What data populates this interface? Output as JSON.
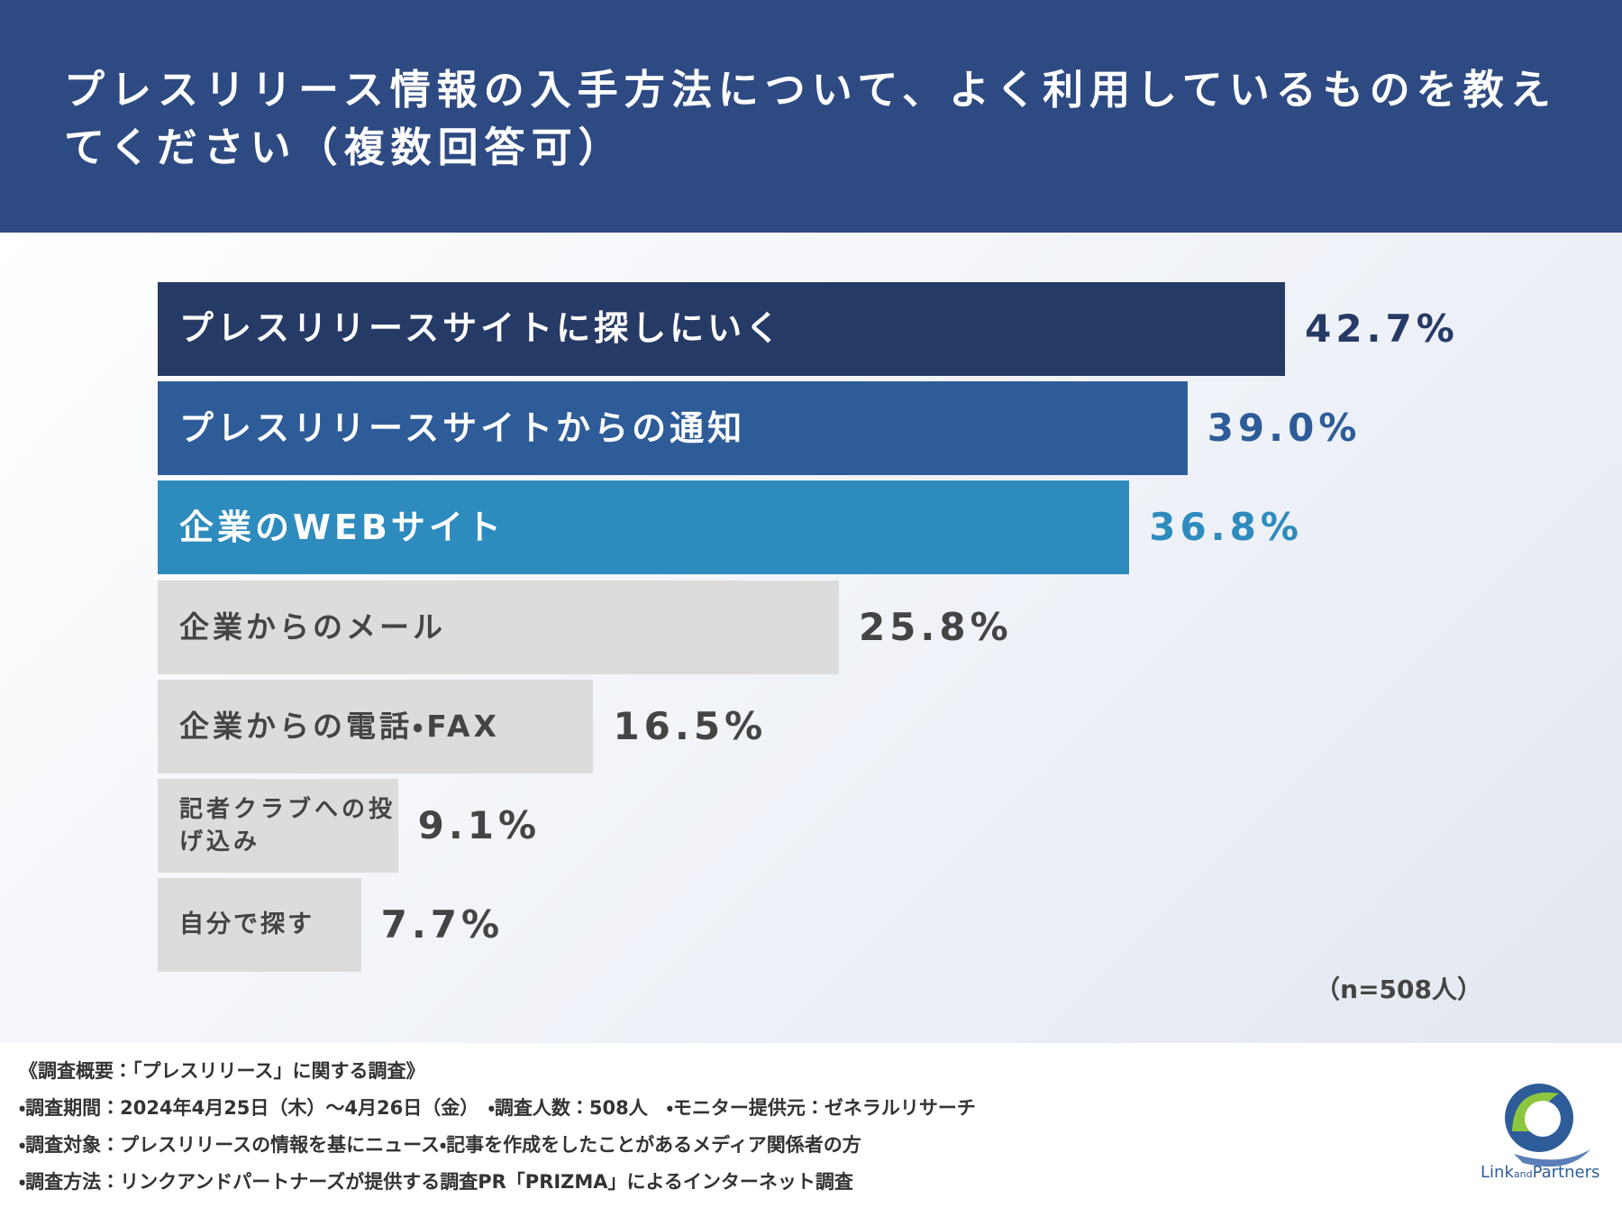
{
  "header": {
    "title": "プレスリリース情報の入手方法について、よく利用しているものを教えてください（複数回答可）"
  },
  "chart_data": {
    "type": "bar",
    "orientation": "horizontal",
    "categories": [
      "プレスリリースサイトに探しにいく",
      "プレスリリースサイトからの通知",
      "企業のWEBサイト",
      "企業からのメール",
      "企業からの電話・FAX",
      "記者クラブへの投げ込み",
      "自分で探す"
    ],
    "values": [
      42.7,
      39.0,
      36.8,
      25.8,
      16.5,
      9.1,
      7.7
    ],
    "value_labels": [
      "42.7%",
      "39.0%",
      "36.8%",
      "25.8%",
      "16.5%",
      "9.1%",
      "7.7%"
    ],
    "colors": [
      "#263a66",
      "#2d5c99",
      "#2e8bbd",
      "#dcdcdc",
      "#dcdcdc",
      "#dcdcdc",
      "#dcdcdc"
    ],
    "note": "（n=508人）"
  },
  "footer": {
    "notes": [
      "《調査概要：「プレスリリース」に関する調査》",
      "・調査期間：2024年4月25日（木）～4月26日（金）　・調査人数：508人　・モニター提供元：ゼネラルリサーチ",
      "・調査対象：プレスリリースの情報を基にニュース・記事を作成をしたことがあるメディア関係者の方",
      "・調査方法：リンクアンドパートナーズが提供する調査PR「PRIZMA」によるインターネット調査"
    ]
  },
  "logo": {
    "name": "Link",
    "mid": "and",
    "tail": "Partners"
  }
}
